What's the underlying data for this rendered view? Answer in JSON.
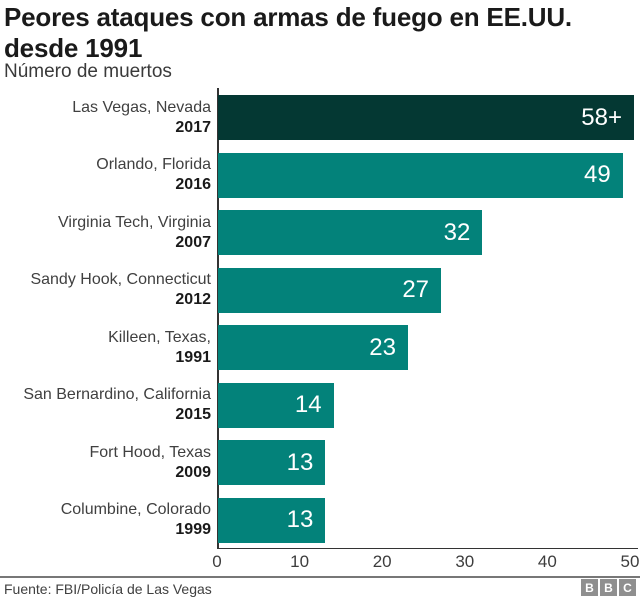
{
  "chart_data": {
    "type": "bar",
    "orientation": "horizontal",
    "title": "Peores ataques con armas de fuego en EE.UU. desde 1991",
    "subtitle": "Número de muertos",
    "items": [
      {
        "location": "Las Vegas, Nevada",
        "year": "2017",
        "value": 58,
        "value_label": "58+",
        "highlight": true
      },
      {
        "location": "Orlando, Florida",
        "year": "2016",
        "value": 49,
        "value_label": "49",
        "highlight": false
      },
      {
        "location": "Virginia Tech, Virginia",
        "year": "2007",
        "value": 32,
        "value_label": "32",
        "highlight": false
      },
      {
        "location": "Sandy Hook, Connecticut",
        "year": "2012",
        "value": 27,
        "value_label": "27",
        "highlight": false
      },
      {
        "location": "Killeen, Texas,",
        "year": "1991",
        "value": 23,
        "value_label": "23",
        "highlight": false
      },
      {
        "location": "San Bernardino, California",
        "year": "2015",
        "value": 14,
        "value_label": "14",
        "highlight": false
      },
      {
        "location": "Fort Hood, Texas",
        "year": "2009",
        "value": 13,
        "value_label": "13",
        "highlight": false
      },
      {
        "location": "Columbine, Colorado",
        "year": "1999",
        "value": 13,
        "value_label": "13",
        "highlight": false
      }
    ],
    "xlim": [
      0,
      50
    ],
    "x_ticks": [
      "0",
      "10",
      "20",
      "30",
      "40",
      "50"
    ],
    "grid": "off",
    "legend": "none",
    "colors": {
      "bar": "#03827a",
      "bar_highlight": "#043833",
      "value_label": "#ffffff",
      "axis": "#333333"
    }
  },
  "footer": {
    "source": "Fuente: FBI/Policía de Las Vegas",
    "logo_letters": [
      "B",
      "B",
      "C"
    ]
  }
}
